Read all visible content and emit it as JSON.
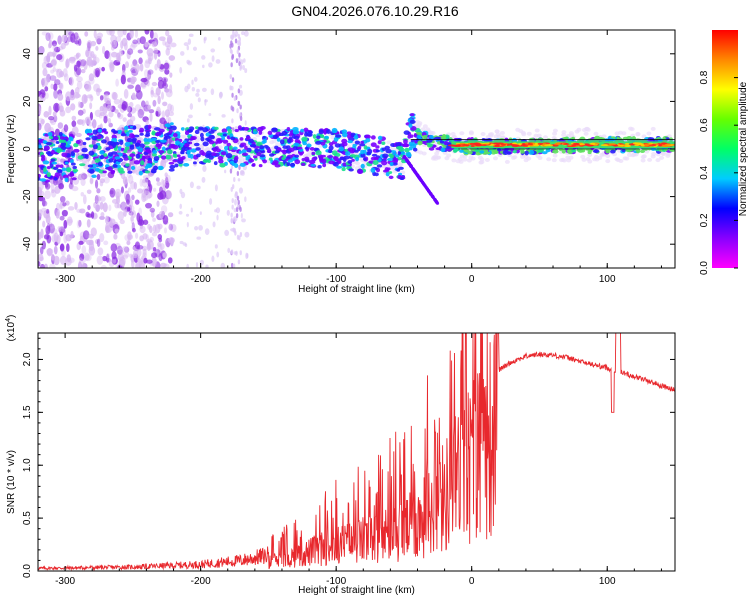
{
  "page": {
    "title": "GN04.2026.076.10.29.R16"
  },
  "chart_data": [
    {
      "type": "heatmap",
      "name": "spectrogram",
      "title": "GN04.2026.076.10.29.R16",
      "xlabel": "Height of straight line (km)",
      "ylabel": "Frequency (Hz)",
      "xlim": [
        -320,
        150
      ],
      "ylim": [
        -50,
        50
      ],
      "xticks": [
        -300,
        -200,
        -100,
        0,
        100
      ],
      "yticks": [
        -40,
        -20,
        0,
        20,
        40
      ],
      "colorbar": {
        "label": "Normalized spectral amplitude",
        "range": [
          0,
          1
        ],
        "ticks": [
          0.0,
          0.2,
          0.4,
          0.6,
          0.8
        ],
        "colormap": [
          "#ff00ff",
          "#8800ff",
          "#0000ff",
          "#00ccff",
          "#00ff66",
          "#66ff00",
          "#ffff00",
          "#ff8800",
          "#ff0000"
        ]
      },
      "ridge": [
        {
          "x": -320,
          "y": -4
        },
        {
          "x": -220,
          "y": 1
        },
        {
          "x": -150,
          "y": 1
        },
        {
          "x": -100,
          "y": 0
        },
        {
          "x": -70,
          "y": -3
        },
        {
          "x": -50,
          "y": -5
        },
        {
          "x": -45,
          "y": 7
        },
        {
          "x": -30,
          "y": 3
        },
        {
          "x": 0,
          "y": 1
        },
        {
          "x": 150,
          "y": 2
        }
      ]
    },
    {
      "type": "line",
      "name": "snr",
      "xlabel": "Height of straight line (km)",
      "ylabel": "SNR (10 * v/v)",
      "yscale_label": "(x10",
      "yscale_exp": "4",
      "xlim": [
        -320,
        150
      ],
      "ylim": [
        0,
        2.25
      ],
      "xticks": [
        -300,
        -200,
        -100,
        0,
        100
      ],
      "yticks": [
        "0.0",
        "0.5",
        "1.0",
        "1.5",
        "2.0"
      ],
      "color": "#e8282d",
      "series": [
        {
          "name": "SNR",
          "points": [
            [
              -320,
              0.02
            ],
            [
              -250,
              0.03
            ],
            [
              -200,
              0.05
            ],
            [
              -170,
              0.08
            ],
            [
              -150,
              0.12
            ],
            [
              -130,
              0.2
            ],
            [
              -110,
              0.3
            ],
            [
              -90,
              0.38
            ],
            [
              -70,
              0.45
            ],
            [
              -50,
              0.55
            ],
            [
              -40,
              0.65
            ],
            [
              -30,
              0.8
            ],
            [
              -20,
              1.0
            ],
            [
              -10,
              1.25
            ],
            [
              0,
              1.5
            ],
            [
              10,
              1.75
            ],
            [
              20,
              1.9
            ],
            [
              30,
              1.98
            ],
            [
              40,
              2.03
            ],
            [
              50,
              2.05
            ],
            [
              60,
              2.04
            ],
            [
              70,
              2.02
            ],
            [
              80,
              1.98
            ],
            [
              90,
              1.95
            ],
            [
              100,
              1.92
            ],
            [
              105,
              1.9
            ],
            [
              110,
              1.88
            ],
            [
              120,
              1.84
            ],
            [
              130,
              1.8
            ],
            [
              140,
              1.75
            ],
            [
              150,
              1.71
            ]
          ]
        }
      ]
    }
  ]
}
